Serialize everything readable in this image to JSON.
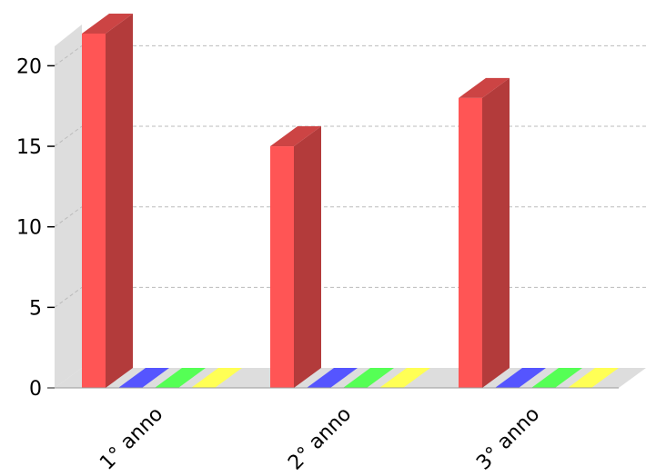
{
  "chart_data": {
    "type": "bar",
    "style": "3d-grouped",
    "categories": [
      "1° anno",
      "2° anno",
      "3° anno"
    ],
    "series": [
      {
        "values": [
          22,
          15,
          18
        ],
        "color": "#ff5555",
        "side_color": "#b33b3b",
        "top_color": "#cc4444"
      },
      {
        "values": [
          0,
          0,
          0
        ],
        "color": "#5555ff"
      },
      {
        "values": [
          0,
          0,
          0
        ],
        "color": "#55ff55"
      },
      {
        "values": [
          0,
          0,
          0
        ],
        "color": "#ffff55"
      }
    ],
    "y_ticks": [
      "0",
      "5",
      "10",
      "15",
      "20"
    ],
    "ylim": [
      0,
      22
    ],
    "grid": true
  }
}
